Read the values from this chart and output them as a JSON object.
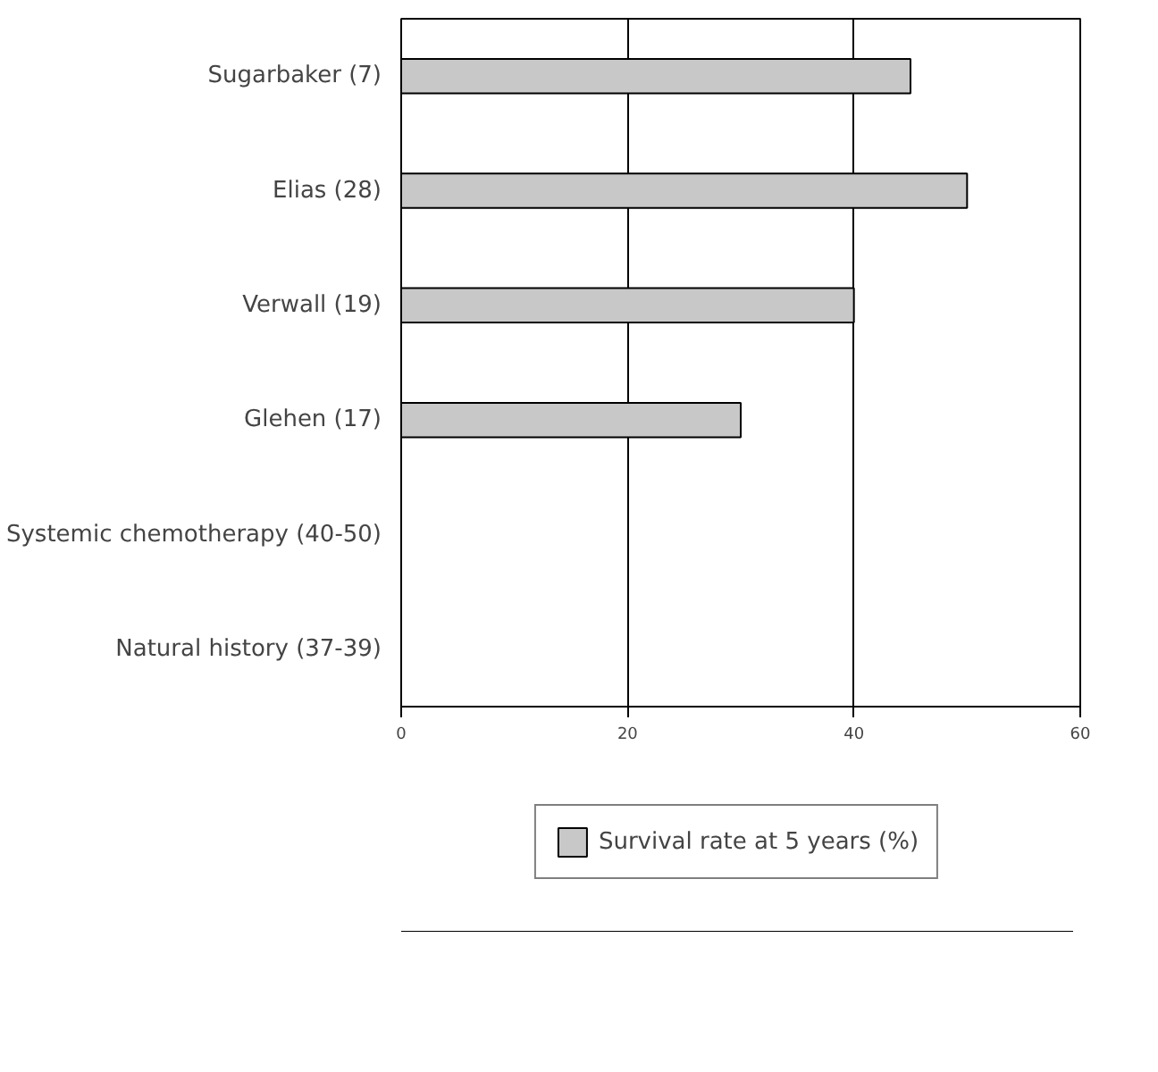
{
  "chart_data": {
    "type": "bar",
    "orientation": "horizontal",
    "categories": [
      "Sugarbaker (7)",
      "Elias (28)",
      "Verwall (19)",
      "Glehen (17)",
      "Systemic chemotherapy (40-50)",
      "Natural history (37-39)"
    ],
    "series": [
      {
        "name": "Survival rate at 5 years (%)",
        "color": "#c8c8c8",
        "values": [
          45,
          50,
          40,
          30,
          null,
          null
        ]
      }
    ],
    "xlim": [
      0,
      60
    ],
    "xticks": [
      0,
      20,
      40,
      60
    ],
    "grid": "x",
    "legend": "bottom"
  }
}
